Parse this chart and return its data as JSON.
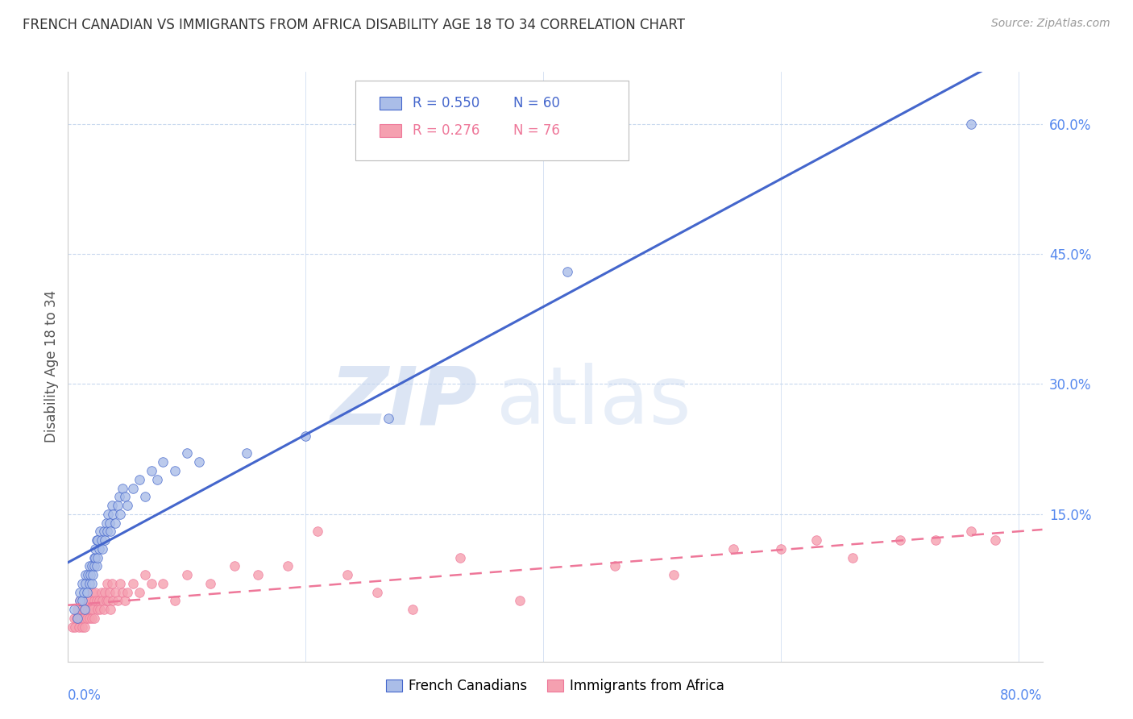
{
  "title": "FRENCH CANADIAN VS IMMIGRANTS FROM AFRICA DISABILITY AGE 18 TO 34 CORRELATION CHART",
  "source": "Source: ZipAtlas.com",
  "ylabel": "Disability Age 18 to 34",
  "xlim": [
    0.0,
    0.82
  ],
  "ylim": [
    -0.02,
    0.66
  ],
  "blue_color": "#AABDE8",
  "pink_color": "#F5A0B0",
  "blue_line_color": "#4466CC",
  "pink_line_color": "#EE7799",
  "axis_tick_color": "#5588EE",
  "grid_color": "#C8D8EE",
  "french_canadians_x": [
    0.005,
    0.008,
    0.01,
    0.01,
    0.012,
    0.012,
    0.013,
    0.014,
    0.015,
    0.015,
    0.016,
    0.017,
    0.018,
    0.018,
    0.019,
    0.02,
    0.02,
    0.021,
    0.022,
    0.022,
    0.023,
    0.023,
    0.024,
    0.024,
    0.025,
    0.025,
    0.026,
    0.027,
    0.028,
    0.029,
    0.03,
    0.031,
    0.032,
    0.033,
    0.034,
    0.035,
    0.036,
    0.037,
    0.038,
    0.04,
    0.042,
    0.043,
    0.044,
    0.046,
    0.048,
    0.05,
    0.055,
    0.06,
    0.065,
    0.07,
    0.075,
    0.08,
    0.09,
    0.1,
    0.11,
    0.15,
    0.2,
    0.27,
    0.42,
    0.76
  ],
  "french_canadians_y": [
    0.04,
    0.03,
    0.05,
    0.06,
    0.05,
    0.07,
    0.06,
    0.04,
    0.07,
    0.08,
    0.06,
    0.08,
    0.07,
    0.09,
    0.08,
    0.07,
    0.09,
    0.08,
    0.1,
    0.09,
    0.1,
    0.11,
    0.09,
    0.12,
    0.1,
    0.12,
    0.11,
    0.13,
    0.12,
    0.11,
    0.13,
    0.12,
    0.14,
    0.13,
    0.15,
    0.14,
    0.13,
    0.16,
    0.15,
    0.14,
    0.16,
    0.17,
    0.15,
    0.18,
    0.17,
    0.16,
    0.18,
    0.19,
    0.17,
    0.2,
    0.19,
    0.21,
    0.2,
    0.22,
    0.21,
    0.22,
    0.24,
    0.26,
    0.43,
    0.6
  ],
  "africa_x": [
    0.004,
    0.005,
    0.006,
    0.007,
    0.008,
    0.009,
    0.01,
    0.01,
    0.011,
    0.012,
    0.012,
    0.013,
    0.013,
    0.014,
    0.014,
    0.015,
    0.016,
    0.016,
    0.017,
    0.018,
    0.018,
    0.019,
    0.02,
    0.02,
    0.021,
    0.022,
    0.022,
    0.023,
    0.024,
    0.025,
    0.026,
    0.027,
    0.028,
    0.029,
    0.03,
    0.031,
    0.032,
    0.033,
    0.034,
    0.035,
    0.036,
    0.037,
    0.038,
    0.04,
    0.042,
    0.044,
    0.046,
    0.048,
    0.05,
    0.055,
    0.06,
    0.065,
    0.07,
    0.08,
    0.09,
    0.1,
    0.12,
    0.14,
    0.16,
    0.185,
    0.21,
    0.235,
    0.26,
    0.29,
    0.33,
    0.38,
    0.46,
    0.51,
    0.56,
    0.6,
    0.63,
    0.66,
    0.7,
    0.73,
    0.76,
    0.78
  ],
  "africa_y": [
    0.02,
    0.03,
    0.02,
    0.03,
    0.04,
    0.02,
    0.03,
    0.05,
    0.03,
    0.02,
    0.04,
    0.03,
    0.05,
    0.04,
    0.02,
    0.04,
    0.03,
    0.05,
    0.04,
    0.03,
    0.05,
    0.04,
    0.03,
    0.06,
    0.04,
    0.05,
    0.03,
    0.06,
    0.05,
    0.04,
    0.05,
    0.04,
    0.06,
    0.05,
    0.04,
    0.06,
    0.05,
    0.07,
    0.05,
    0.06,
    0.04,
    0.07,
    0.05,
    0.06,
    0.05,
    0.07,
    0.06,
    0.05,
    0.06,
    0.07,
    0.06,
    0.08,
    0.07,
    0.07,
    0.05,
    0.08,
    0.07,
    0.09,
    0.08,
    0.09,
    0.13,
    0.08,
    0.06,
    0.04,
    0.1,
    0.05,
    0.09,
    0.08,
    0.11,
    0.11,
    0.12,
    0.1,
    0.12,
    0.12,
    0.13,
    0.12
  ],
  "blue_trend_x0": 0.0,
  "blue_trend_x1": 0.82,
  "pink_trend_x0": 0.0,
  "pink_trend_x1": 0.82
}
